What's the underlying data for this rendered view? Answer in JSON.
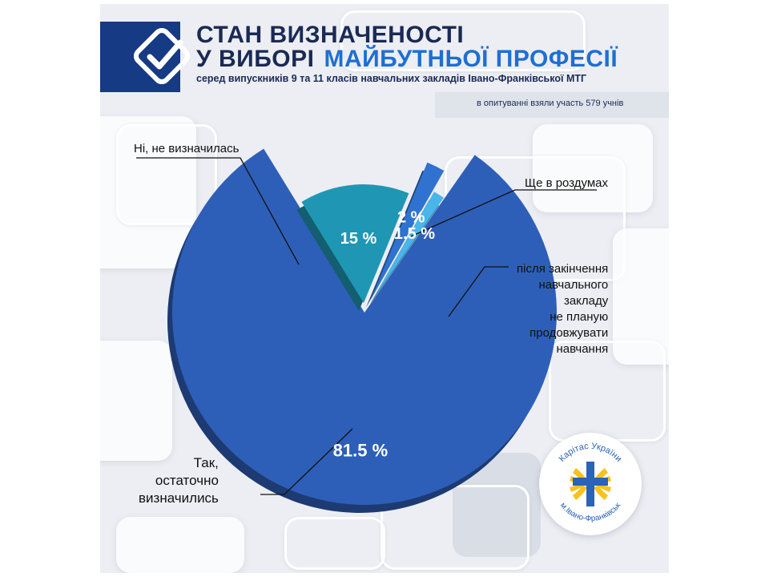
{
  "header": {
    "title_line1": "СТАН ВИЗНАЧЕНОСТІ",
    "title_line2": "У ВИБОРІ",
    "title_highlight": "МАЙБУТНЬОЇ ПРОФЕСІЇ",
    "subtitle": "серед випускників 9 та 11 класів навчальних закладів Івано-Франківської МТГ",
    "participants": "в опитуванні взяли участь 579 учнів",
    "icon": "checkmark-icon"
  },
  "chart_data": {
    "type": "pie",
    "title": "СТАН ВИЗНАЧЕНОСТІ У ВИБОРІ МАЙБУТНЬОЇ ПРОФЕСІЇ",
    "subtitle": "серед випускників 9 та 11 класів навчальних закладів Івано-Франківської МТГ",
    "unit": "%",
    "slices": [
      {
        "label": "Так, остаточно визначились",
        "label_lines": [
          "Так,",
          "остаточно",
          "визначились"
        ],
        "value": 81.5,
        "value_label": "81.5 %",
        "color": "#2e5fb8"
      },
      {
        "label": "Ні, не визначилась",
        "label_lines": [
          "Ні, не визначилась"
        ],
        "value": 15,
        "value_label": "15 %",
        "color": "#1f97b4"
      },
      {
        "label": "Ще в роздумах",
        "label_lines": [
          "Ще в роздумах"
        ],
        "value": 2,
        "value_label": "2 %",
        "color": "#2f72cf"
      },
      {
        "label": "після закінчення навчального закладу не планую продовжувати навчання",
        "label_lines": [
          "після закінчення",
          "навчального",
          "закладу",
          "не планую",
          "продовжувати",
          "навчання"
        ],
        "value": 1.5,
        "value_label": "1.5 %",
        "color": "#49b6ea"
      }
    ]
  },
  "logo": {
    "text_top": "Карітас України",
    "text_bottom": "м.Івано-Франківськ",
    "icon": "caritas-cross-icon",
    "colors": {
      "blue": "#2a63b7",
      "yellow": "#f6c21c"
    }
  },
  "colors": {
    "navy": "#163a83",
    "accent": "#1e6fd2",
    "text": "#1a2a55",
    "background": "#eceef3"
  }
}
